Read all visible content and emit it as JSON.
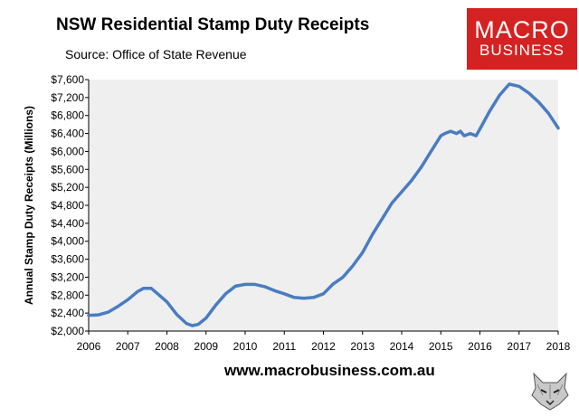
{
  "header": {
    "title": "NSW Residential Stamp Duty Receipts",
    "source": "Source: Office of State Revenue"
  },
  "logo": {
    "line1": "MACRO",
    "line2": "BUSINESS",
    "color": "#d42222"
  },
  "footer": {
    "website": "www.macrobusiness.com.au"
  },
  "chart_data": {
    "type": "line",
    "title": "NSW Residential Stamp Duty Receipts",
    "xlabel": "",
    "ylabel": "Annual Stamp Duty Receipts (Millions)",
    "xlim": [
      2006,
      2018
    ],
    "ylim": [
      2000,
      7600
    ],
    "grid": false,
    "legend": "none",
    "line_color": "#4a7cc1",
    "plot_background": "#efefef",
    "x_ticks": [
      "2006",
      "2007",
      "2008",
      "2009",
      "2010",
      "2011",
      "2012",
      "2013",
      "2014",
      "2015",
      "2016",
      "2017",
      "2018"
    ],
    "y_ticks": [
      "$2,000",
      "$2,400",
      "$2,800",
      "$3,200",
      "$3,600",
      "$4,000",
      "$4,400",
      "$4,800",
      "$5,200",
      "$5,600",
      "$6,000",
      "$6,400",
      "$6,800",
      "$7,200",
      "$7,600"
    ],
    "x": [
      2006.0,
      2006.25,
      2006.5,
      2006.75,
      2007.0,
      2007.25,
      2007.4,
      2007.6,
      2007.75,
      2008.0,
      2008.25,
      2008.5,
      2008.65,
      2008.8,
      2009.0,
      2009.25,
      2009.5,
      2009.75,
      2010.0,
      2010.25,
      2010.5,
      2010.75,
      2011.0,
      2011.25,
      2011.5,
      2011.75,
      2012.0,
      2012.25,
      2012.5,
      2012.75,
      2013.0,
      2013.25,
      2013.5,
      2013.75,
      2014.0,
      2014.25,
      2014.5,
      2014.75,
      2015.0,
      2015.1,
      2015.25,
      2015.4,
      2015.5,
      2015.6,
      2015.75,
      2015.9,
      2016.0,
      2016.25,
      2016.5,
      2016.75,
      2017.0,
      2017.25,
      2017.5,
      2017.75,
      2018.0
    ],
    "y": [
      2350,
      2360,
      2420,
      2550,
      2700,
      2880,
      2950,
      2950,
      2840,
      2650,
      2370,
      2170,
      2120,
      2150,
      2290,
      2580,
      2830,
      3000,
      3040,
      3040,
      2990,
      2900,
      2830,
      2750,
      2730,
      2750,
      2830,
      3050,
      3200,
      3450,
      3750,
      4150,
      4500,
      4850,
      5100,
      5350,
      5650,
      6000,
      6350,
      6400,
      6450,
      6400,
      6450,
      6350,
      6400,
      6350,
      6500,
      6900,
      7250,
      7500,
      7450,
      7300,
      7100,
      6850,
      6520
    ],
    "series": [
      {
        "values": "y"
      }
    ]
  }
}
